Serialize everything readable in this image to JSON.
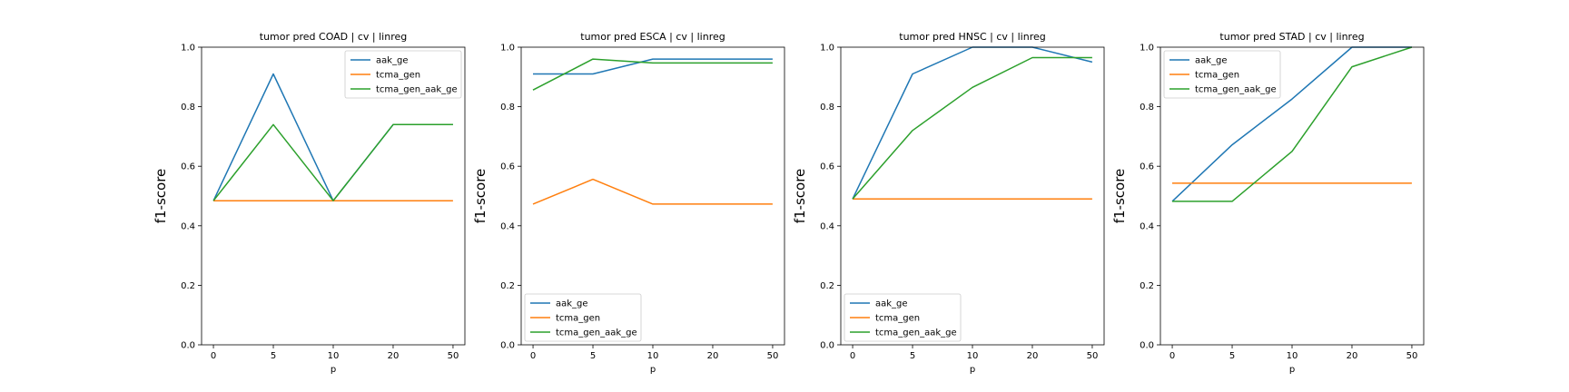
{
  "chart_data": [
    {
      "type": "line",
      "title": "tumor pred COAD | cv | linreg",
      "xlabel": "p",
      "ylabel": "f1-score",
      "categories": [
        "0",
        "5",
        "10",
        "20",
        "50"
      ],
      "ylim": [
        0,
        1
      ],
      "yticks": [
        "0.0",
        "0.2",
        "0.4",
        "0.6",
        "0.8",
        "1.0"
      ],
      "legend": "top-right",
      "series": [
        {
          "name": "aak_ge",
          "color": "#1f77b4",
          "values": [
            0.484,
            0.91,
            0.484,
            0.74,
            0.74
          ]
        },
        {
          "name": "tcma_gen",
          "color": "#ff7f0e",
          "values": [
            0.484,
            0.484,
            0.484,
            0.484,
            0.484
          ]
        },
        {
          "name": "tcma_gen_aak_ge",
          "color": "#2ca02c",
          "values": [
            0.484,
            0.74,
            0.484,
            0.74,
            0.74
          ]
        }
      ]
    },
    {
      "type": "line",
      "title": "tumor pred ESCA | cv | linreg",
      "xlabel": "p",
      "ylabel": "f1-score",
      "categories": [
        "0",
        "5",
        "10",
        "20",
        "50"
      ],
      "ylim": [
        0,
        1
      ],
      "yticks": [
        "0.0",
        "0.2",
        "0.4",
        "0.6",
        "0.8",
        "1.0"
      ],
      "legend": "bottom-left",
      "series": [
        {
          "name": "aak_ge",
          "color": "#1f77b4",
          "values": [
            0.91,
            0.91,
            0.96,
            0.96,
            0.96
          ]
        },
        {
          "name": "tcma_gen",
          "color": "#ff7f0e",
          "values": [
            0.473,
            0.556,
            0.473,
            0.473,
            0.473
          ]
        },
        {
          "name": "tcma_gen_aak_ge",
          "color": "#2ca02c",
          "values": [
            0.856,
            0.96,
            0.947,
            0.947,
            0.947
          ]
        }
      ]
    },
    {
      "type": "line",
      "title": "tumor pred HNSC | cv | linreg",
      "xlabel": "p",
      "ylabel": "f1-score",
      "categories": [
        "0",
        "5",
        "10",
        "20",
        "50"
      ],
      "ylim": [
        0,
        1
      ],
      "yticks": [
        "0.0",
        "0.2",
        "0.4",
        "0.6",
        "0.8",
        "1.0"
      ],
      "legend": "bottom-left",
      "series": [
        {
          "name": "aak_ge",
          "color": "#1f77b4",
          "values": [
            0.49,
            0.91,
            1.0,
            1.0,
            0.95
          ]
        },
        {
          "name": "tcma_gen",
          "color": "#ff7f0e",
          "values": [
            0.49,
            0.49,
            0.49,
            0.49,
            0.49
          ]
        },
        {
          "name": "tcma_gen_aak_ge",
          "color": "#2ca02c",
          "values": [
            0.49,
            0.72,
            0.865,
            0.965,
            0.965
          ]
        }
      ]
    },
    {
      "type": "line",
      "title": "tumor pred STAD | cv | linreg",
      "xlabel": "p",
      "ylabel": "f1-score",
      "categories": [
        "0",
        "5",
        "10",
        "20",
        "50"
      ],
      "ylim": [
        0,
        1
      ],
      "yticks": [
        "0.0",
        "0.2",
        "0.4",
        "0.6",
        "0.8",
        "1.0"
      ],
      "legend": "top-left",
      "series": [
        {
          "name": "aak_ge",
          "color": "#1f77b4",
          "values": [
            0.482,
            0.672,
            0.826,
            1.0,
            1.0
          ]
        },
        {
          "name": "tcma_gen",
          "color": "#ff7f0e",
          "values": [
            0.543,
            0.543,
            0.543,
            0.543,
            0.543
          ]
        },
        {
          "name": "tcma_gen_aak_ge",
          "color": "#2ca02c",
          "values": [
            0.482,
            0.482,
            0.65,
            0.934,
            1.0
          ]
        }
      ]
    }
  ]
}
